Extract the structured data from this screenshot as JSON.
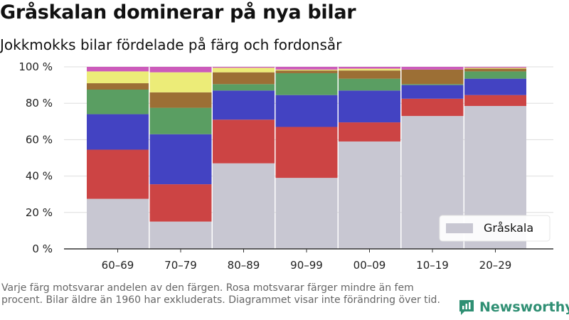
{
  "title": "Gråskalan dominerar på nya bilar",
  "subtitle": "Jokkmokks bilar fördelade på färg och fordonsår",
  "footnote": "Varje färg motsvarar andelen av den färgen. Rosa motsvarar färger mindre än fem procent. Bilar äldre än 1960 har exkluderats. Diagrammet visar inte förändring över tid.",
  "brand": {
    "name": "Newsworthy",
    "icon": "newsworthy-logo-icon"
  },
  "colors": {
    "background": "#ffffff",
    "gridline": "#dddddd",
    "axis": "#333333",
    "brand": "#2f8f73"
  },
  "chart_data": {
    "type": "bar",
    "stacked": true,
    "categories": [
      "60–69",
      "70–79",
      "80–89",
      "90–99",
      "00–09",
      "10–19",
      "20–29"
    ],
    "y_ticks": [
      "0 %",
      "20 %",
      "40 %",
      "60 %",
      "80 %",
      "100 %"
    ],
    "ylim": [
      0,
      100
    ],
    "grid": true,
    "legend": {
      "position": "bottom-right",
      "entries": [
        "Gråskala"
      ]
    },
    "series": [
      {
        "name": "Gråskala",
        "color": "#c8c7d2",
        "values": [
          27.5,
          15,
          47,
          39,
          59,
          73,
          78.5
        ]
      },
      {
        "color": "#cc4444",
        "values": [
          27,
          20.5,
          24,
          28,
          10.5,
          9.5,
          6
        ]
      },
      {
        "color": "#4343c2",
        "values": [
          19.5,
          27.5,
          16,
          17.5,
          17.5,
          7.5,
          9
        ]
      },
      {
        "color": "#5a9e62",
        "values": [
          13.5,
          14.5,
          3.5,
          12,
          6.5,
          0.5,
          4
        ]
      },
      {
        "color": "#9c6f35",
        "values": [
          3.5,
          8.5,
          6.5,
          1.5,
          4.5,
          8,
          1.5
        ]
      },
      {
        "color": "#ecec78",
        "values": [
          6.5,
          11,
          2.5,
          0.5,
          1,
          0,
          0.5
        ]
      },
      {
        "color": "#cc5bbb",
        "values": [
          2.5,
          3,
          0.5,
          1.5,
          1,
          1.5,
          0.5
        ]
      }
    ]
  }
}
